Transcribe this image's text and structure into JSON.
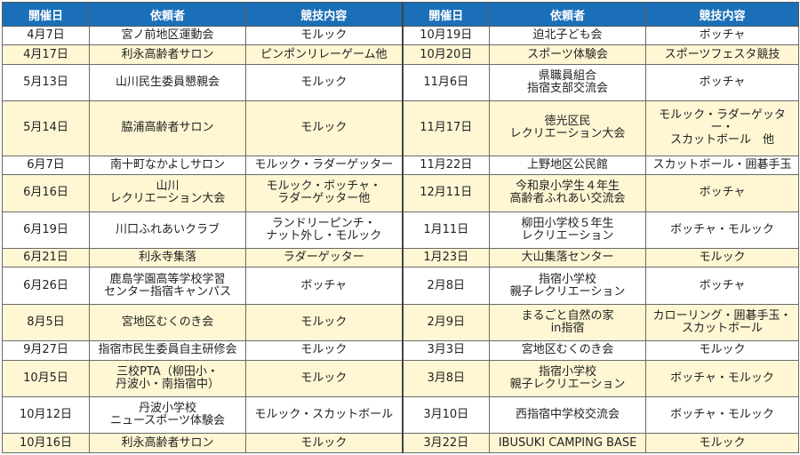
{
  "headers": [
    "開催日",
    "依頼者",
    "競技内容",
    "開催日",
    "依頼者",
    "競技内容"
  ],
  "rows": [
    [
      "4月7日",
      "宮ノ前地区運動会",
      "モルック",
      "10月19日",
      "迫北子ども会",
      "ボッチャ"
    ],
    [
      "4月17日",
      "利永高齢者サロン",
      "ピンポンリレーゲーム他",
      "10月20日",
      "スポーツ体験会",
      "スポーツフェスタ競技"
    ],
    [
      "5月13日",
      "山川民生委員懇親会",
      "モルック",
      "11月6日",
      "県職員組合\n指宿支部交流会",
      "ボッチャ"
    ],
    [
      "5月14日",
      "脇浦高齢者サロン",
      "モルック",
      "11月17日",
      "徳光区民\nレクリエーション大会",
      "モルック・ラダーゲッター・\nスカットボール　他"
    ],
    [
      "6月7日",
      "南十町なかよしサロン",
      "モルック・ラダーゲッター",
      "11月22日",
      "上野地区公民館",
      "スカットボール・囲碁手玉"
    ],
    [
      "6月16日",
      "山川\nレクリエーション大会",
      "モルック・ボッチャ・\nラダーゲッター他",
      "12月11日",
      "今和泉小学生４年生\n高齢者ふれあい交流会",
      "ボッチャ"
    ],
    [
      "6月19日",
      "川口ふれあいクラブ",
      "ランドリーピンチ・\nナット外し・モルック",
      "1月11日",
      "柳田小学校５年生\nレクリエーション",
      "ボッチャ・モルック"
    ],
    [
      "6月21日",
      "利永寺集落",
      "ラダーゲッター",
      "1月23日",
      "大山集落センター",
      "モルック"
    ],
    [
      "6月26日",
      "鹿島学園高等学校学習\nセンター指宿キャンパス",
      "ボッチャ",
      "2月8日",
      "指宿小学校\n親子レクリエーション",
      "ボッチャ"
    ],
    [
      "8月5日",
      "宮地区むくのき会",
      "モルック",
      "2月9日",
      "まるごと自然の家\nin指宿",
      "カローリング・囲碁手玉・\nスカットボール"
    ],
    [
      "9月27日",
      "指宿市民生委員自主研修会",
      "モルック",
      "3月3日",
      "宮地区むくのき会",
      "モルック"
    ],
    [
      "10月5日",
      "三校PTA（柳田小・\n丹波小・南指宿中）",
      "モルック",
      "3月8日",
      "指宿小学校\n親子レクリエーション",
      "ボッチャ・モルック"
    ],
    [
      "10月12日",
      "丹波小学校\nニュースポーツ体験会",
      "モルック・スカットボール",
      "3月10日",
      "西指宿中学校交流会",
      "ボッチャ・モルック"
    ],
    [
      "10月16日",
      "利永高齢者サロン",
      "モルック",
      "3月22日",
      "IBUSUKI CAMPING BASE",
      "モルック"
    ]
  ],
  "colors": {
    "header_bg": "#1a6fb8",
    "header_text": "#ffffff",
    "alt_row_bg": "#fff7d4",
    "border": "#6a6a6a"
  }
}
